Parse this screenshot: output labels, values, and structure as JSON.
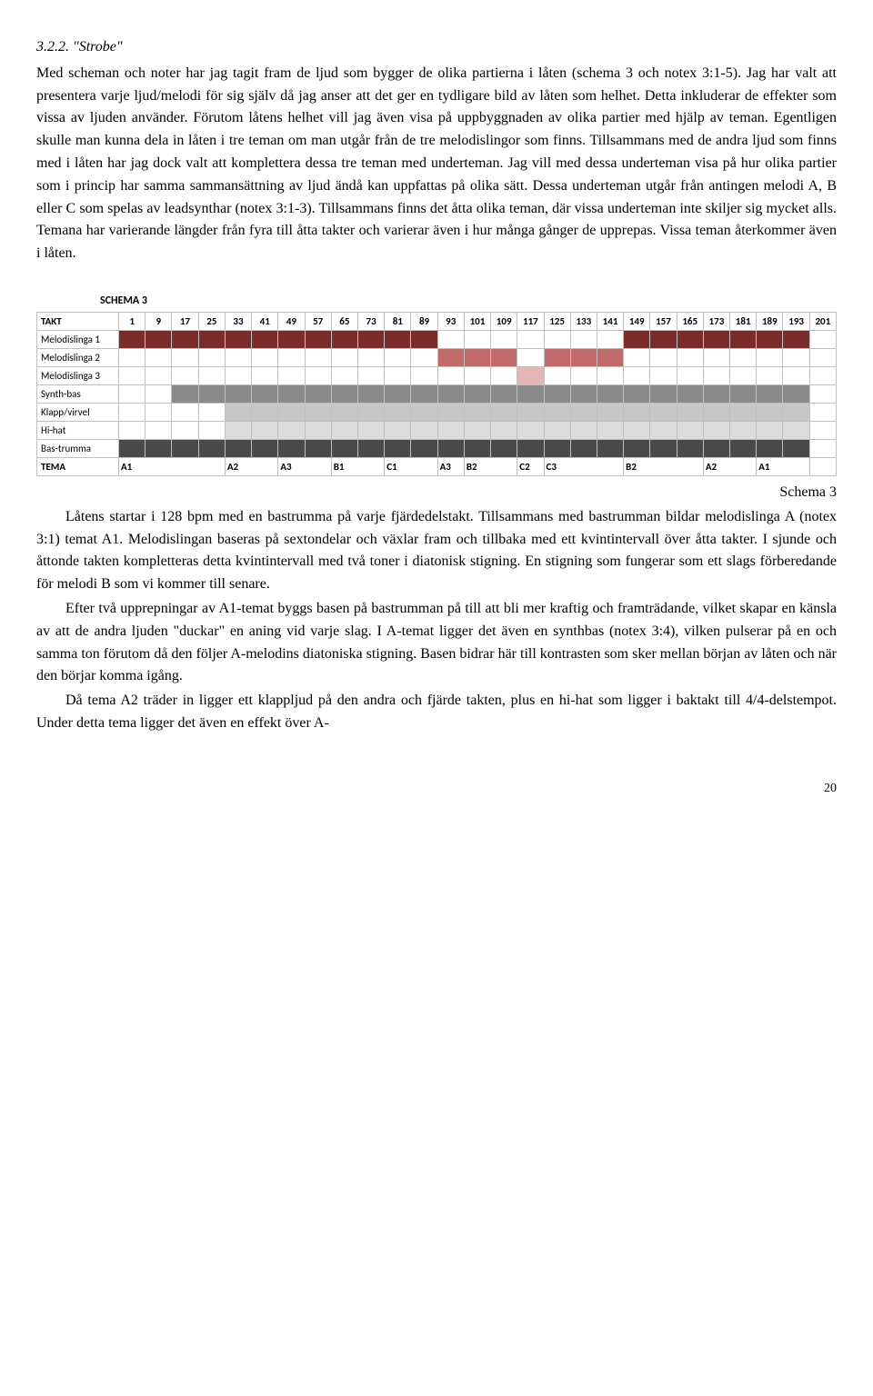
{
  "heading": "3.2.2. \"Strobe\"",
  "para1": "Med scheman och noter har jag tagit fram de ljud som bygger de olika partierna i låten (schema 3 och notex 3:1-5). Jag har valt att presentera varje ljud/melodi för sig själv då jag anser att det ger en tydligare bild av låten som helhet. Detta inkluderar de effekter som vissa av ljuden använder. Förutom låtens helhet vill jag även visa på uppbyggnaden av olika partier med hjälp av teman. Egentligen skulle man kunna dela in låten i tre teman om man utgår från de tre melodislingor som finns. Tillsammans med de andra ljud som finns med i låten har jag dock valt att komplettera dessa tre teman med underteman. Jag vill med dessa underteman visa på hur olika partier som i princip har samma sammansättning av ljud ändå kan uppfattas på olika sätt. Dessa underteman utgår från antingen melodi A, B eller C som spelas av leadsynthar (notex 3:1-3). Tillsammans finns det åtta olika teman, där vissa underteman inte skiljer sig mycket alls. Temana har varierande längder från fyra till åtta takter och varierar även i hur många gånger de upprepas. Vissa teman återkommer även i låten.",
  "schema": {
    "title": "SCHEMA 3",
    "caption": "Schema 3",
    "takt_label": "TAKT",
    "tema_label": "TEMA",
    "ticks": [
      "1",
      "9",
      "17",
      "25",
      "33",
      "41",
      "49",
      "57",
      "65",
      "73",
      "81",
      "89",
      "93",
      "101",
      "109",
      "117",
      "125",
      "133",
      "141",
      "149",
      "157",
      "165",
      "173",
      "181",
      "189",
      "193",
      "201"
    ],
    "tracks": [
      {
        "name": "Melodislinga 1",
        "fills": [
          {
            "from": 0,
            "to": 12,
            "color": "#7a2b2b"
          },
          {
            "from": 19,
            "to": 26,
            "color": "#7a2b2b"
          }
        ]
      },
      {
        "name": "Melodislinga 2",
        "fills": [
          {
            "from": 12,
            "to": 15,
            "color": "#c06a6a"
          },
          {
            "from": 16,
            "to": 19,
            "color": "#c06a6a"
          }
        ]
      },
      {
        "name": "Melodislinga 3",
        "fills": [
          {
            "from": 15,
            "to": 16,
            "color": "#e3b6b6"
          }
        ]
      },
      {
        "name": "Synth-bas",
        "fills": [
          {
            "from": 2,
            "to": 26,
            "color": "#8a8a8a"
          }
        ]
      },
      {
        "name": "Klapp/virvel",
        "fills": [
          {
            "from": 4,
            "to": 26,
            "color": "#c7c7c7"
          }
        ]
      },
      {
        "name": "Hi-hat",
        "fills": [
          {
            "from": 4,
            "to": 26,
            "color": "#dcdcdc"
          }
        ]
      },
      {
        "name": "Bas-trumma",
        "fills": [
          {
            "from": 0,
            "to": 26,
            "color": "#4a4a4a"
          }
        ]
      }
    ],
    "tema": [
      {
        "label": "A1",
        "span": 4
      },
      {
        "label": "A2",
        "span": 2
      },
      {
        "label": "A3",
        "span": 2
      },
      {
        "label": "B1",
        "span": 2
      },
      {
        "label": "C1",
        "span": 2
      },
      {
        "label": "A3",
        "span": 1
      },
      {
        "label": "B2",
        "span": 2
      },
      {
        "label": "C2",
        "span": 1
      },
      {
        "label": "C3",
        "span": 3
      },
      {
        "label": "B2",
        "span": 3
      },
      {
        "label": "A2",
        "span": 2
      },
      {
        "label": "A1",
        "span": 2
      }
    ]
  },
  "para2": "Låtens startar i 128 bpm med en bastrumma på varje fjärdedelstakt. Tillsammans med bastrumman bildar melodislinga A (notex 3:1) temat A1. Melodislingan baseras på sextondelar och växlar fram och tillbaka med ett kvintintervall över åtta takter. I sjunde och åttonde takten kompletteras detta kvintintervall med två toner i diatonisk stigning. En stigning som fungerar som ett slags förberedande för melodi B som vi kommer till senare.",
  "para3": "Efter två upprepningar av A1-temat byggs basen på bastrumman på till att bli mer kraftig och framträdande, vilket skapar en känsla av att de andra ljuden \"duckar\" en aning vid varje slag. I A-temat ligger det även en synthbas (notex 3:4), vilken pulserar på en och samma ton förutom då den följer A-melodins diatoniska stigning. Basen bidrar här till kontrasten som sker mellan början av låten och när den börjar komma igång.",
  "para4": "Då tema A2 träder in ligger ett klappljud på den andra och fjärde takten, plus en hi-hat som ligger i baktakt till 4/4-delstempot. Under detta tema ligger det även en effekt över A-",
  "page": "20"
}
